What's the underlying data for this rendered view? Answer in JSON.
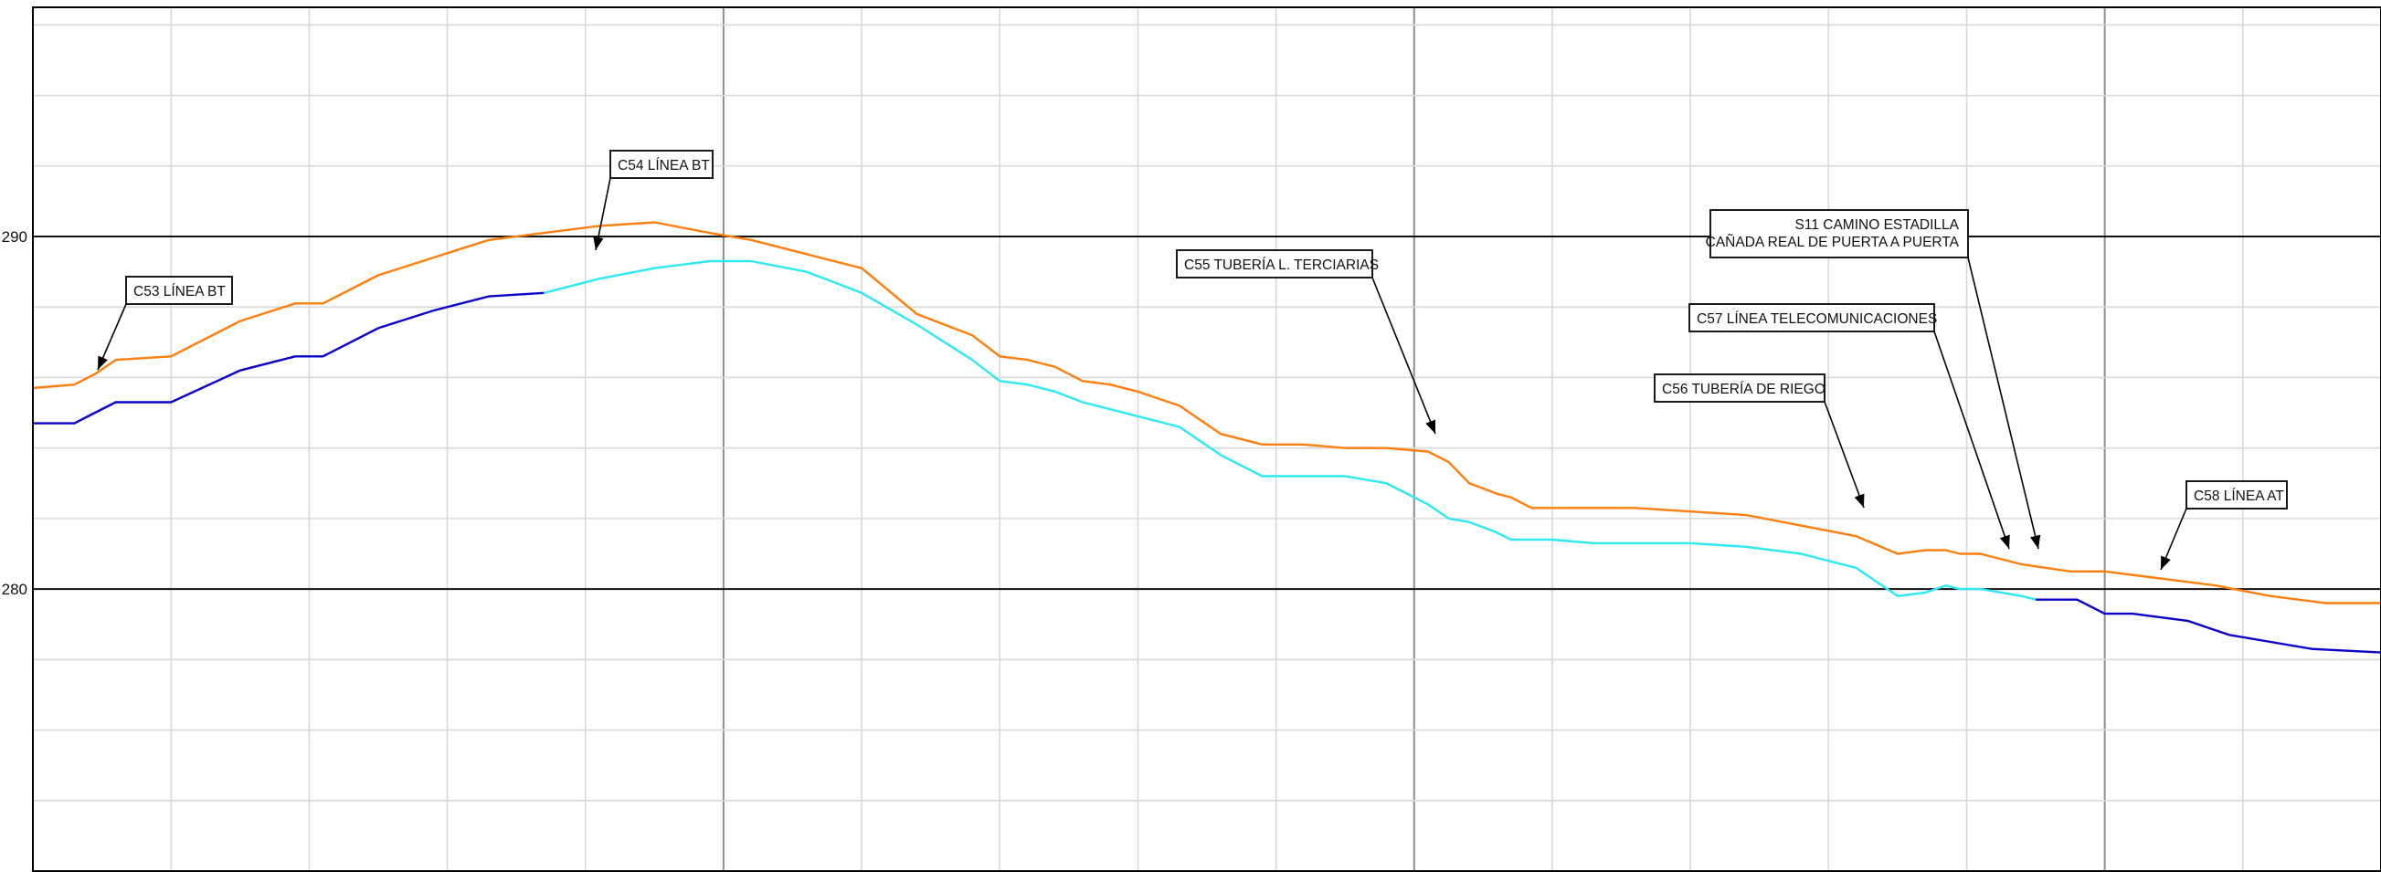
{
  "chart_data": {
    "type": "line",
    "title": "",
    "xlabel": "",
    "ylabel": "",
    "x_range": [
      0,
      1700
    ],
    "ylim": [
      272,
      296.5
    ],
    "y_ticks": [
      280,
      290
    ],
    "y_tick_labels": [
      "280",
      "290"
    ],
    "grid": true,
    "legend": "none",
    "series": [
      {
        "color": "#ff7f0e",
        "style": "solid",
        "x": [
          0,
          30,
          45,
          60,
          100,
          150,
          190,
          210,
          250,
          290,
          330,
          370,
          410,
          450,
          490,
          520,
          560,
          600,
          640,
          680,
          700,
          720,
          740,
          760,
          780,
          800,
          830,
          860,
          890,
          920,
          950,
          980,
          1010,
          1025,
          1040,
          1060,
          1070,
          1085,
          1100,
          1130,
          1160,
          1200,
          1240,
          1280,
          1320,
          1350,
          1370,
          1385,
          1395,
          1410,
          1440,
          1475,
          1500,
          1540,
          1580,
          1620,
          1660,
          1700
        ],
        "y": [
          285.7,
          285.8,
          286.1,
          286.5,
          286.6,
          287.6,
          288.1,
          288.1,
          288.9,
          289.4,
          289.9,
          290.1,
          290.3,
          290.4,
          290.1,
          289.9,
          289.5,
          289.1,
          287.8,
          287.2,
          286.6,
          286.5,
          286.3,
          285.9,
          285.8,
          285.6,
          285.2,
          284.4,
          284.1,
          284.1,
          284.0,
          284.0,
          283.9,
          283.6,
          283.0,
          282.7,
          282.6,
          282.3,
          282.3,
          282.3,
          282.3,
          282.2,
          282.1,
          281.8,
          281.5,
          281.0,
          281.1,
          281.1,
          281.0,
          281.0,
          280.7,
          280.5,
          280.5,
          280.3,
          280.1,
          279.8,
          279.6,
          279.6
        ]
      },
      {
        "color": "#0a00c8",
        "style": "solid",
        "x": [
          0,
          30,
          45,
          60,
          100,
          150,
          190,
          210,
          250,
          290,
          330,
          370
        ],
        "y": [
          284.7,
          284.7,
          285.0,
          285.3,
          285.3,
          286.2,
          286.6,
          286.6,
          287.4,
          287.9,
          288.3,
          288.4
        ]
      },
      {
        "color": "#2ee9f2",
        "style": "solid",
        "x": [
          370,
          410,
          450,
          490,
          520,
          560,
          600,
          640,
          680,
          700,
          720,
          740,
          760,
          780,
          800,
          830,
          860,
          890,
          920,
          950,
          980,
          1010,
          1025,
          1040,
          1060,
          1070,
          1085,
          1100,
          1130,
          1160,
          1200,
          1240,
          1280,
          1320,
          1350,
          1370,
          1385,
          1395,
          1410,
          1440,
          1450
        ],
        "y": [
          288.4,
          288.8,
          289.1,
          289.3,
          289.3,
          289.0,
          288.4,
          287.5,
          286.5,
          285.9,
          285.8,
          285.6,
          285.3,
          285.1,
          284.9,
          284.6,
          283.8,
          283.2,
          283.2,
          283.2,
          283.0,
          282.4,
          282.0,
          281.9,
          281.6,
          281.4,
          281.4,
          281.4,
          281.3,
          281.3,
          281.3,
          281.2,
          281.0,
          280.6,
          279.8,
          279.9,
          280.1,
          280.0,
          280.0,
          279.8,
          279.7
        ]
      },
      {
        "color": "#0a00c8",
        "style": "solid",
        "x": [
          1450,
          1480,
          1500,
          1520,
          1560,
          1590,
          1620,
          1650,
          1700
        ],
        "y": [
          279.7,
          279.7,
          279.3,
          279.3,
          279.1,
          278.7,
          278.5,
          278.3,
          278.2
        ]
      }
    ],
    "annotations": [
      {
        "lines": [
          "C53 LÍNEA BT"
        ]
      },
      {
        "lines": [
          "C54 LÍNEA BT"
        ]
      },
      {
        "lines": [
          "C55 TUBERÍA L. TERCIARIAS"
        ]
      },
      {
        "lines": [
          "S11 CAMINO ESTADILLA",
          "CAÑADA REAL DE PUERTA A PUERTA"
        ]
      },
      {
        "lines": [
          "C57 LÍNEA TELECOMUNICACIONES"
        ]
      },
      {
        "lines": [
          "C56 TUBERÍA DE RIEGO"
        ]
      },
      {
        "lines": [
          "C58 LÍNEA AT"
        ]
      }
    ]
  }
}
